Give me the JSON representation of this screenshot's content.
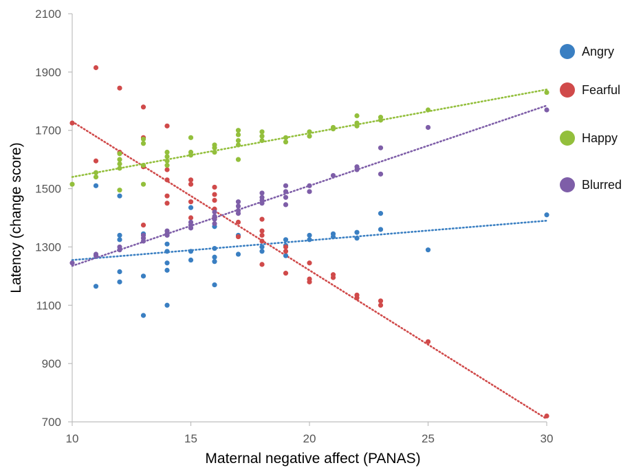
{
  "chart_data": {
    "type": "scatter",
    "xlabel": "Maternal negative affect (PANAS)",
    "ylabel": "Latency (change score)",
    "xlim": [
      10,
      30
    ],
    "ylim": [
      700,
      2100
    ],
    "x_ticks": [
      10,
      15,
      20,
      25,
      30
    ],
    "y_ticks": [
      700,
      900,
      1100,
      1300,
      1500,
      1700,
      1900,
      2100
    ],
    "grid": false,
    "legend_position": "right",
    "trendlines": "linear, dotted",
    "series": [
      {
        "name": "Angry",
        "color": "#3a7fc2",
        "trend": [
          [
            10,
            1255
          ],
          [
            30,
            1390
          ]
        ],
        "points": [
          [
            11,
            1510
          ],
          [
            11,
            1165
          ],
          [
            12,
            1475
          ],
          [
            12,
            1340
          ],
          [
            12,
            1325
          ],
          [
            12,
            1215
          ],
          [
            12,
            1180
          ],
          [
            13,
            1345
          ],
          [
            13,
            1200
          ],
          [
            13,
            1065
          ],
          [
            14,
            1310
          ],
          [
            14,
            1285
          ],
          [
            14,
            1245
          ],
          [
            14,
            1220
          ],
          [
            14,
            1100
          ],
          [
            15,
            1435
          ],
          [
            15,
            1285
          ],
          [
            15,
            1255
          ],
          [
            16,
            1370
          ],
          [
            16,
            1295
          ],
          [
            16,
            1265
          ],
          [
            16,
            1250
          ],
          [
            16,
            1170
          ],
          [
            17,
            1340
          ],
          [
            17,
            1275
          ],
          [
            18,
            1300
          ],
          [
            18,
            1285
          ],
          [
            19,
            1325
          ],
          [
            19,
            1305
          ],
          [
            19,
            1270
          ],
          [
            20,
            1340
          ],
          [
            20,
            1325
          ],
          [
            21,
            1345
          ],
          [
            21,
            1335
          ],
          [
            22,
            1350
          ],
          [
            22,
            1330
          ],
          [
            23,
            1415
          ],
          [
            23,
            1360
          ],
          [
            25,
            1290
          ],
          [
            30,
            1410
          ]
        ]
      },
      {
        "name": "Fearful",
        "color": "#d04a4a",
        "trend": [
          [
            10,
            1730
          ],
          [
            30,
            710
          ]
        ],
        "points": [
          [
            10,
            1725
          ],
          [
            11,
            1915
          ],
          [
            11,
            1595
          ],
          [
            12,
            1845
          ],
          [
            12,
            1625
          ],
          [
            13,
            1780
          ],
          [
            13,
            1675
          ],
          [
            13,
            1575
          ],
          [
            13,
            1375
          ],
          [
            14,
            1715
          ],
          [
            14,
            1565
          ],
          [
            14,
            1530
          ],
          [
            14,
            1475
          ],
          [
            14,
            1450
          ],
          [
            15,
            1530
          ],
          [
            15,
            1515
          ],
          [
            15,
            1455
          ],
          [
            15,
            1400
          ],
          [
            16,
            1505
          ],
          [
            16,
            1480
          ],
          [
            16,
            1460
          ],
          [
            16,
            1430
          ],
          [
            16,
            1400
          ],
          [
            17,
            1385
          ],
          [
            17,
            1335
          ],
          [
            18,
            1395
          ],
          [
            18,
            1355
          ],
          [
            18,
            1340
          ],
          [
            18,
            1320
          ],
          [
            18,
            1240
          ],
          [
            19,
            1300
          ],
          [
            19,
            1285
          ],
          [
            19,
            1210
          ],
          [
            20,
            1245
          ],
          [
            20,
            1190
          ],
          [
            20,
            1180
          ],
          [
            21,
            1205
          ],
          [
            21,
            1195
          ],
          [
            22,
            1135
          ],
          [
            22,
            1125
          ],
          [
            23,
            1115
          ],
          [
            23,
            1100
          ],
          [
            25,
            975
          ],
          [
            30,
            720
          ]
        ]
      },
      {
        "name": "Happy",
        "color": "#93bf3c",
        "trend": [
          [
            10,
            1540
          ],
          [
            30,
            1840
          ]
        ],
        "points": [
          [
            10,
            1515
          ],
          [
            11,
            1555
          ],
          [
            11,
            1540
          ],
          [
            12,
            1620
          ],
          [
            12,
            1600
          ],
          [
            12,
            1585
          ],
          [
            12,
            1570
          ],
          [
            12,
            1495
          ],
          [
            13,
            1670
          ],
          [
            13,
            1655
          ],
          [
            13,
            1580
          ],
          [
            13,
            1515
          ],
          [
            14,
            1625
          ],
          [
            14,
            1610
          ],
          [
            14,
            1595
          ],
          [
            14,
            1580
          ],
          [
            15,
            1675
          ],
          [
            15,
            1625
          ],
          [
            15,
            1615
          ],
          [
            16,
            1650
          ],
          [
            16,
            1640
          ],
          [
            16,
            1625
          ],
          [
            17,
            1700
          ],
          [
            17,
            1685
          ],
          [
            17,
            1665
          ],
          [
            17,
            1650
          ],
          [
            17,
            1600
          ],
          [
            18,
            1695
          ],
          [
            18,
            1680
          ],
          [
            18,
            1665
          ],
          [
            19,
            1675
          ],
          [
            19,
            1660
          ],
          [
            20,
            1695
          ],
          [
            20,
            1680
          ],
          [
            21,
            1710
          ],
          [
            21,
            1705
          ],
          [
            22,
            1750
          ],
          [
            22,
            1725
          ],
          [
            22,
            1715
          ],
          [
            23,
            1745
          ],
          [
            23,
            1735
          ],
          [
            25,
            1770
          ],
          [
            30,
            1830
          ]
        ]
      },
      {
        "name": "Blurred",
        "color": "#7e5ea8",
        "trend": [
          [
            10,
            1235
          ],
          [
            30,
            1785
          ]
        ],
        "points": [
          [
            10,
            1245
          ],
          [
            11,
            1275
          ],
          [
            11,
            1270
          ],
          [
            12,
            1300
          ],
          [
            12,
            1290
          ],
          [
            13,
            1340
          ],
          [
            13,
            1330
          ],
          [
            13,
            1320
          ],
          [
            14,
            1355
          ],
          [
            14,
            1345
          ],
          [
            14,
            1340
          ],
          [
            15,
            1385
          ],
          [
            15,
            1375
          ],
          [
            15,
            1365
          ],
          [
            16,
            1420
          ],
          [
            16,
            1405
          ],
          [
            16,
            1395
          ],
          [
            16,
            1380
          ],
          [
            17,
            1455
          ],
          [
            17,
            1440
          ],
          [
            17,
            1425
          ],
          [
            17,
            1415
          ],
          [
            18,
            1485
          ],
          [
            18,
            1470
          ],
          [
            18,
            1460
          ],
          [
            18,
            1450
          ],
          [
            19,
            1510
          ],
          [
            19,
            1490
          ],
          [
            19,
            1470
          ],
          [
            19,
            1445
          ],
          [
            20,
            1510
          ],
          [
            20,
            1490
          ],
          [
            21,
            1545
          ],
          [
            22,
            1575
          ],
          [
            22,
            1565
          ],
          [
            23,
            1640
          ],
          [
            23,
            1550
          ],
          [
            25,
            1710
          ],
          [
            30,
            1770
          ]
        ]
      }
    ]
  }
}
